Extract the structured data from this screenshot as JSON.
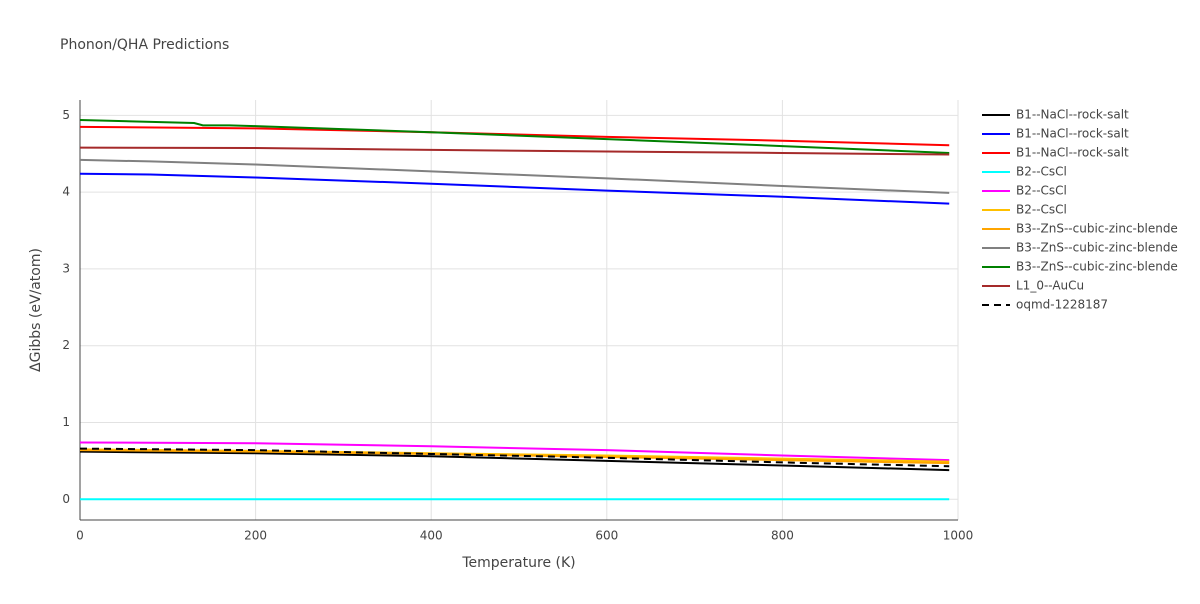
{
  "chart_data": {
    "type": "line",
    "title": "Phonon/QHA Predictions",
    "x_label": "Temperature (K)",
    "y_label": "ΔGibbs (eV/atom)",
    "xlim": [
      0,
      1000
    ],
    "xticks": [
      0,
      200,
      400,
      600,
      800,
      1000
    ],
    "ylim": [
      -0.27,
      5.2
    ],
    "yticks": [
      0,
      1,
      2,
      3,
      4,
      5
    ],
    "grid": true,
    "series": [
      {
        "name": "B1--NaCl--rock-salt",
        "color": "#000000",
        "x": [
          0,
          200,
          400,
          600,
          800,
          990
        ],
        "values": [
          0.62,
          0.6,
          0.56,
          0.5,
          0.44,
          0.38
        ]
      },
      {
        "name": "B1--NaCl--rock-salt",
        "color": "#0000ff",
        "x": [
          0,
          80,
          200,
          400,
          600,
          800,
          990
        ],
        "values": [
          4.24,
          4.23,
          4.19,
          4.11,
          4.02,
          3.94,
          3.85
        ]
      },
      {
        "name": "B1--NaCl--rock-salt",
        "color": "#ff0000",
        "x": [
          0,
          200,
          400,
          600,
          800,
          990
        ],
        "values": [
          4.85,
          4.83,
          4.78,
          4.72,
          4.67,
          4.61
        ]
      },
      {
        "name": "B2--CsCl",
        "color": "#00ffff",
        "x": [
          0,
          200,
          400,
          600,
          800,
          990
        ],
        "values": [
          0,
          0,
          0,
          0,
          0,
          0
        ]
      },
      {
        "name": "B2--CsCl",
        "color": "#ff00ff",
        "x": [
          0,
          200,
          400,
          600,
          800,
          990
        ],
        "values": [
          0.74,
          0.73,
          0.69,
          0.64,
          0.57,
          0.51
        ]
      },
      {
        "name": "B2--CsCl",
        "color": "#ffc000",
        "x": [
          0,
          200,
          400,
          600,
          800,
          990
        ],
        "values": [
          0.65,
          0.63,
          0.6,
          0.57,
          0.53,
          0.49
        ]
      },
      {
        "name": "B3--ZnS--cubic-zinc-blende",
        "color": "#ffa500",
        "x": [
          0,
          200,
          400,
          600,
          800,
          990
        ],
        "values": [
          0.64,
          0.62,
          0.59,
          0.55,
          0.51,
          0.47
        ]
      },
      {
        "name": "B3--ZnS--cubic-zinc-blende",
        "color": "#808080",
        "x": [
          0,
          80,
          200,
          400,
          600,
          800,
          990
        ],
        "values": [
          4.42,
          4.4,
          4.36,
          4.27,
          4.18,
          4.08,
          3.99
        ]
      },
      {
        "name": "B3--ZnS--cubic-zinc-blende",
        "color": "#008000",
        "x": [
          0,
          130,
          140,
          170,
          200,
          400,
          600,
          800,
          990
        ],
        "values": [
          4.94,
          4.9,
          4.87,
          4.87,
          4.86,
          4.78,
          4.69,
          4.6,
          4.51
        ]
      },
      {
        "name": "L1_0--AuCu",
        "color": "#a52a2a",
        "x": [
          0,
          200,
          400,
          600,
          800,
          990
        ],
        "values": [
          4.58,
          4.575,
          4.55,
          4.53,
          4.51,
          4.49
        ]
      },
      {
        "name": "oqmd-1228187",
        "color": "#000000",
        "dash": true,
        "x": [
          0,
          200,
          400,
          600,
          800,
          990
        ],
        "values": [
          0.66,
          0.64,
          0.59,
          0.54,
          0.48,
          0.43
        ]
      }
    ]
  }
}
